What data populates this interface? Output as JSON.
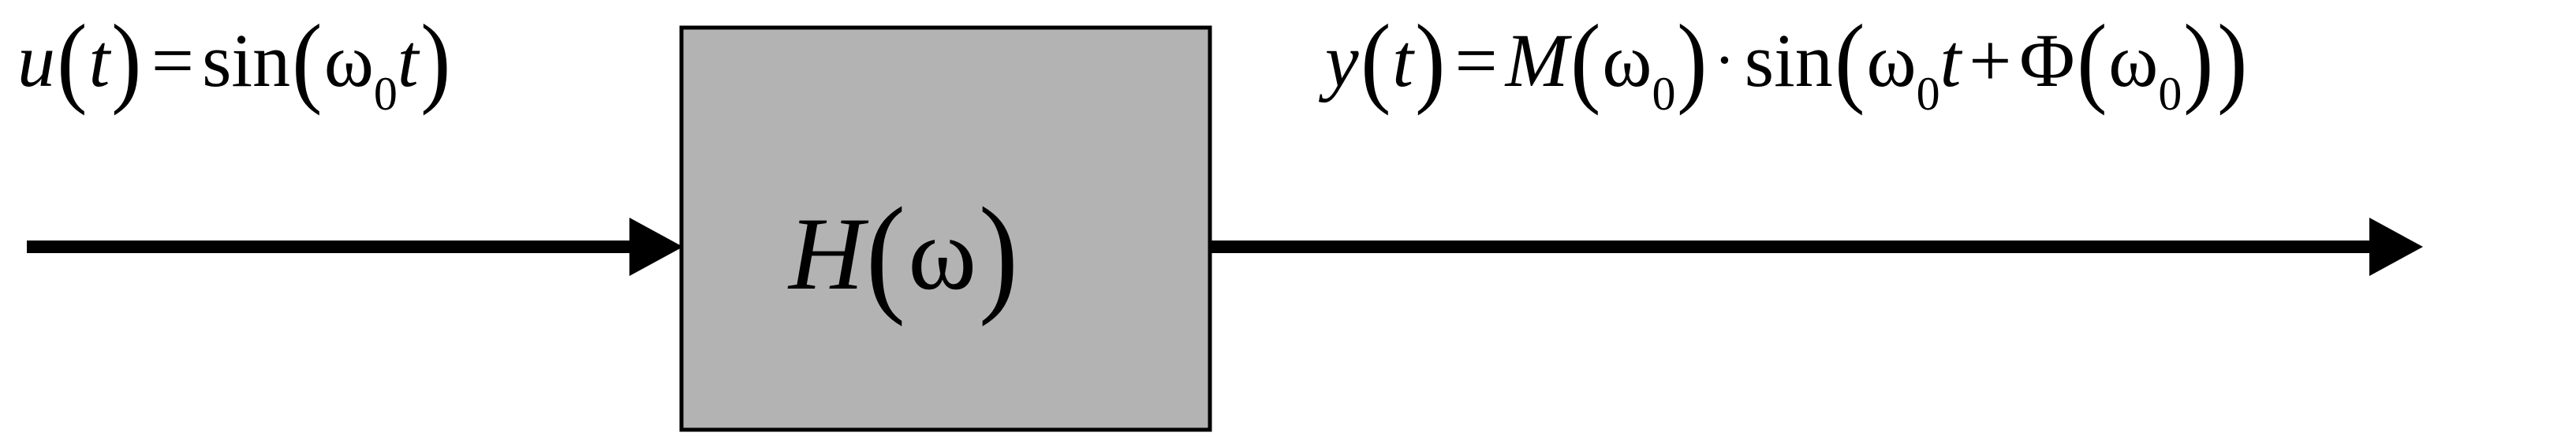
{
  "input": {
    "fn": "u",
    "arg": "t",
    "equals": "=",
    "op": "sin",
    "omega": "ω",
    "sub": "0",
    "var": "t"
  },
  "block": {
    "letter": "H",
    "arg": "ω",
    "fill": "#b3b3b3"
  },
  "output": {
    "fn": "y",
    "arg": "t",
    "equals": "=",
    "mag": "M",
    "omega": "ω",
    "sub": "0",
    "dot": "·",
    "op": "sin",
    "var": "t",
    "plus": "+",
    "phase": "Φ"
  },
  "colors": {
    "line": "#000000",
    "background": "#ffffff"
  }
}
